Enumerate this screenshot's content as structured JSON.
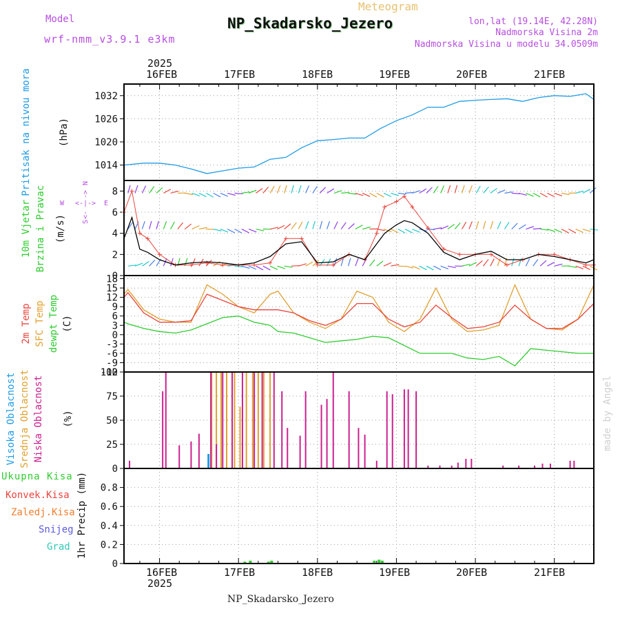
{
  "header": {
    "model_label": "Model",
    "model_name": "wrf-nmm_v3.9.1 e3km",
    "subtitle": "Meteogram",
    "station": "NP_Skadarsko_Jezero",
    "lonlat": "lon,lat (19.14E, 42.28N)",
    "elevation": "Nadmorska Visina 2m",
    "model_elevation": "Nadmorska Visina u modelu 34.0509m",
    "footer_station": "NP_Skadarsko_Jezero",
    "watermark": "made by Angel"
  },
  "colors": {
    "pressure": "#1e9be6",
    "temp2m": "#e8453c",
    "sfc_temp": "#e0a030",
    "dewpoint": "#2ecc2e",
    "low_cloud": "#cc1f8f",
    "mid_cloud": "#e0a030",
    "high_cloud": "#1e9be6",
    "purple_text": "#b64de0",
    "wind_speed": "#000000",
    "gust": "#e8453c"
  },
  "time_axis": {
    "year": "2025",
    "days": [
      "16FEB",
      "17FEB",
      "18FEB",
      "19FEB",
      "20FEB",
      "21FEB"
    ]
  },
  "chart_data": [
    {
      "name": "pressure",
      "type": "line",
      "ylabel_1": "Pritisak na nivou mora",
      "ylabel_2": "(hPa)",
      "yticks": [
        "1014",
        "1020",
        "1026",
        "1032"
      ],
      "ylim": [
        1010,
        1035
      ],
      "x_days": [
        15.55,
        15.8,
        16.0,
        16.2,
        16.4,
        16.6,
        16.8,
        17.0,
        17.2,
        17.4,
        17.6,
        17.8,
        18.0,
        18.2,
        18.4,
        18.6,
        18.8,
        19.0,
        19.2,
        19.4,
        19.6,
        19.8,
        20.0,
        20.2,
        20.4,
        20.6,
        20.8,
        21.0,
        21.2,
        21.4,
        21.5
      ],
      "values": [
        1014,
        1014.5,
        1014.5,
        1014,
        1013,
        1011.8,
        1012.5,
        1013.2,
        1013.5,
        1015.5,
        1016,
        1018.5,
        1020.3,
        1020.6,
        1021,
        1021,
        1023.5,
        1025.5,
        1027,
        1029,
        1029,
        1030.5,
        1030.8,
        1031,
        1031.2,
        1030.5,
        1031.5,
        1032,
        1031.8,
        1032.5,
        1031
      ]
    },
    {
      "name": "wind",
      "type": "line",
      "ylabel_1": "10m Vjetar",
      "ylabel_2": "Brzina i Pravac",
      "ylabel_3": "(m/s)",
      "compass": [
        "N",
        "E",
        "S",
        "W"
      ],
      "yticks": [
        "0",
        "2",
        "4",
        "6",
        "8"
      ],
      "ylim": [
        0,
        9
      ],
      "x_days": [
        15.55,
        15.65,
        15.75,
        15.85,
        16.0,
        16.2,
        16.4,
        16.6,
        16.8,
        17.0,
        17.2,
        17.4,
        17.6,
        17.8,
        18.0,
        18.2,
        18.4,
        18.6,
        18.75,
        18.85,
        19.0,
        19.1,
        19.2,
        19.4,
        19.6,
        19.8,
        20.0,
        20.2,
        20.4,
        20.6,
        20.8,
        21.0,
        21.2,
        21.4,
        21.5
      ],
      "speed": [
        3.5,
        5.5,
        2.5,
        2.2,
        1.5,
        1.0,
        1.2,
        1.3,
        1.2,
        1.0,
        1.2,
        1.8,
        3.0,
        3.2,
        1.2,
        1.3,
        2.0,
        1.5,
        3.0,
        4.0,
        4.8,
        5.2,
        5.0,
        4.0,
        2.2,
        1.5,
        2.0,
        2.3,
        1.5,
        1.5,
        2.0,
        1.8,
        1.5,
        1.2,
        1.5
      ],
      "gust": [
        6.0,
        8.0,
        4.0,
        3.5,
        2.0,
        1.0,
        1.0,
        1.2,
        1.0,
        1.0,
        1.0,
        1.2,
        3.5,
        3.5,
        1.0,
        1.0,
        2.0,
        1.5,
        4.0,
        6.5,
        7.0,
        7.5,
        6.5,
        4.5,
        2.5,
        2.0,
        2.0,
        2.0,
        1.0,
        1.5,
        2.0,
        2.0,
        1.5,
        1.0,
        1.0
      ]
    },
    {
      "name": "temperature",
      "type": "line",
      "ylabel_1": "2m Temp",
      "ylabel_2": "SFC Temp",
      "ylabel_3": "dewpt Temp",
      "ylabel_4": "(C)",
      "yticks": [
        "-12",
        "-9",
        "-6",
        "-3",
        "0",
        "3",
        "6",
        "9",
        "12",
        "15",
        "18"
      ],
      "ylim": [
        -12,
        19
      ],
      "x_days": [
        15.55,
        15.6,
        15.8,
        16.0,
        16.2,
        16.4,
        16.6,
        16.8,
        17.0,
        17.2,
        17.4,
        17.5,
        17.7,
        17.9,
        18.1,
        18.3,
        18.5,
        18.7,
        18.9,
        19.1,
        19.3,
        19.5,
        19.7,
        19.9,
        20.1,
        20.3,
        20.5,
        20.7,
        20.9,
        21.1,
        21.3,
        21.5
      ],
      "series": [
        {
          "name": "SFC Temp",
          "values": [
            13,
            14.5,
            8,
            5,
            4,
            4,
            16,
            13,
            9,
            7,
            13,
            14,
            7,
            4,
            2,
            5,
            14,
            12,
            4,
            1,
            5,
            15,
            5,
            1,
            1.5,
            3,
            16,
            5,
            2,
            1.5,
            5,
            16
          ]
        },
        {
          "name": "2m Temp",
          "values": [
            12,
            13.5,
            7,
            4,
            4,
            4.5,
            13,
            11,
            9,
            8,
            8,
            8,
            7,
            4.5,
            3,
            5,
            10,
            10,
            5,
            2.5,
            4,
            9.5,
            5.5,
            2,
            2.5,
            4,
            9.5,
            5,
            2,
            2,
            5,
            10
          ]
        },
        {
          "name": "dewpt Temp",
          "values": [
            4,
            3.5,
            2,
            1,
            0.5,
            1.5,
            3.5,
            5.5,
            6,
            4,
            3,
            1,
            0.5,
            -1,
            -2.5,
            -2,
            -1.5,
            -0.5,
            -1,
            -3.5,
            -6,
            -6,
            -6,
            -7.5,
            -8,
            -7,
            -10,
            -4.5,
            -5,
            -5.5,
            -6,
            -6
          ]
        }
      ]
    },
    {
      "name": "cloud",
      "type": "bar",
      "ylabel_1": "Visoka Oblacnost",
      "ylabel_2": "Srednja Oblacnost",
      "ylabel_3": "Niska Oblacnost",
      "ylabel_4": "(%)",
      "yticks": [
        "0",
        "25",
        "50",
        "75",
        "100"
      ],
      "ylim": [
        0,
        100
      ],
      "low": [
        [
          15.62,
          8
        ],
        [
          16.04,
          80
        ],
        [
          16.08,
          100
        ],
        [
          16.25,
          24
        ],
        [
          16.4,
          28
        ],
        [
          16.5,
          36
        ],
        [
          16.65,
          100
        ],
        [
          16.72,
          25
        ],
        [
          16.8,
          100
        ],
        [
          16.92,
          100
        ],
        [
          17.05,
          100
        ],
        [
          17.2,
          100
        ],
        [
          17.3,
          100
        ],
        [
          17.45,
          100
        ],
        [
          17.55,
          80
        ],
        [
          17.62,
          42
        ],
        [
          17.78,
          34
        ],
        [
          17.85,
          80
        ],
        [
          18.05,
          66
        ],
        [
          18.12,
          72
        ],
        [
          18.2,
          100
        ],
        [
          18.4,
          80
        ],
        [
          18.52,
          42
        ],
        [
          18.6,
          35
        ],
        [
          18.75,
          8
        ],
        [
          18.88,
          80
        ],
        [
          18.95,
          77
        ],
        [
          19.1,
          82
        ],
        [
          19.15,
          82
        ],
        [
          19.25,
          80
        ],
        [
          19.4,
          3
        ],
        [
          19.55,
          3
        ],
        [
          19.7,
          3
        ],
        [
          19.78,
          6
        ],
        [
          19.88,
          10
        ],
        [
          19.95,
          10
        ],
        [
          20.35,
          3
        ],
        [
          20.55,
          3
        ],
        [
          20.75,
          3
        ],
        [
          20.85,
          5
        ],
        [
          20.95,
          5
        ],
        [
          21.2,
          8
        ],
        [
          21.25,
          8
        ]
      ],
      "mid": [
        [
          16.66,
          100
        ],
        [
          16.72,
          100
        ],
        [
          16.78,
          100
        ],
        [
          16.85,
          100
        ],
        [
          16.95,
          100
        ],
        [
          17.02,
          64
        ],
        [
          17.1,
          100
        ],
        [
          17.18,
          100
        ],
        [
          17.25,
          100
        ],
        [
          17.32,
          100
        ],
        [
          17.4,
          100
        ]
      ],
      "high": [
        [
          16.62,
          15
        ]
      ]
    },
    {
      "name": "precip",
      "type": "bar",
      "legend": [
        "Ukupna Kisa",
        "Konvek.Kisa",
        "Zaledj.Kisa",
        "Snijeg",
        "Grad"
      ],
      "ylabel": "1hr Precip (mm)",
      "yticks": [
        "0",
        "0.2",
        "0.4",
        "0.6",
        "0.8"
      ],
      "ylim": [
        0,
        1.0
      ],
      "total": [
        [
          17.08,
          0.02
        ],
        [
          17.15,
          0.03
        ],
        [
          17.38,
          0.02
        ],
        [
          17.42,
          0.03
        ],
        [
          18.72,
          0.03
        ],
        [
          18.78,
          0.04
        ],
        [
          18.82,
          0.03
        ]
      ]
    }
  ]
}
